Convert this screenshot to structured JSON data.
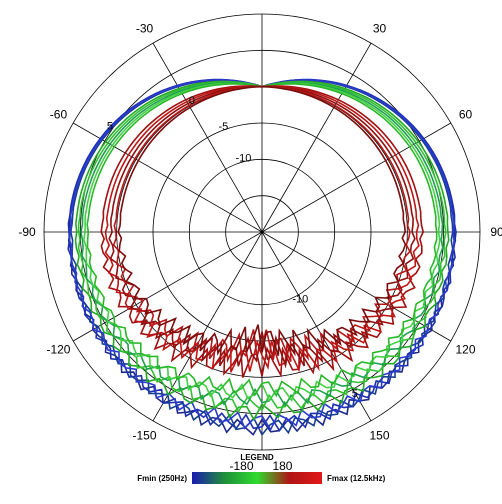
{
  "chart_data": {
    "type": "polar-line",
    "title": "",
    "r_min_db": -20,
    "r_max_db": 10,
    "ring_values": [
      -15,
      -10,
      -5,
      0,
      5
    ],
    "ring_labels": [
      {
        "text": "5"
      },
      {
        "text": "0"
      },
      {
        "text": "-5"
      },
      {
        "text": "-10"
      },
      {
        "text": "-10"
      },
      {
        "text": "5"
      }
    ],
    "angle_labels": [
      "-30",
      "30",
      "-60",
      "60",
      "-90",
      "90",
      "-120",
      "120",
      "-150",
      "150",
      "-180",
      "180"
    ],
    "grid": true,
    "legend": {
      "title": "LEGEND",
      "min_label": "Fmin (250Hz)",
      "max_label": "Fmax (12.5kHz)",
      "colors": [
        "#1b1bb0",
        "#1f8f3a",
        "#2edb2e",
        "#b01515",
        "#e01818"
      ]
    },
    "series": [
      {
        "color": "#1e2a8a",
        "front_db": 0.0,
        "rear_db": 7.0,
        "side_db": 6.5
      },
      {
        "color": "#1c2fb0",
        "front_db": 0.0,
        "rear_db": 6.4,
        "side_db": 6.6
      },
      {
        "color": "#173f8f",
        "front_db": 0.0,
        "rear_db": 6.8,
        "side_db": 6.2
      },
      {
        "color": "#2b3bd0",
        "front_db": 0.0,
        "rear_db": 6.0,
        "side_db": 6.4
      },
      {
        "color": "#22aa22",
        "front_db": 0.0,
        "rear_db": 4.6,
        "side_db": 5.6
      },
      {
        "color": "#33c033",
        "front_db": 0.0,
        "rear_db": 3.6,
        "side_db": 5.2
      },
      {
        "color": "#1fa050",
        "front_db": 0.0,
        "rear_db": 2.8,
        "side_db": 4.8
      },
      {
        "color": "#44d044",
        "front_db": 0.0,
        "rear_db": 2.0,
        "side_db": 4.4
      },
      {
        "color": "#29b829",
        "front_db": 0.0,
        "rear_db": 1.2,
        "side_db": 4.0
      },
      {
        "color": "#a01010",
        "front_db": 0.0,
        "rear_db": -2.4,
        "side_db": 2.0
      },
      {
        "color": "#c01515",
        "front_db": 0.0,
        "rear_db": -3.2,
        "side_db": 1.4
      },
      {
        "color": "#8e1010",
        "front_db": 0.0,
        "rear_db": -4.0,
        "side_db": 0.8
      },
      {
        "color": "#b81818",
        "front_db": 0.0,
        "rear_db": -4.8,
        "side_db": 0.2
      },
      {
        "color": "#7a0c0c",
        "front_db": 0.0,
        "rear_db": -5.6,
        "side_db": -0.4
      }
    ]
  }
}
